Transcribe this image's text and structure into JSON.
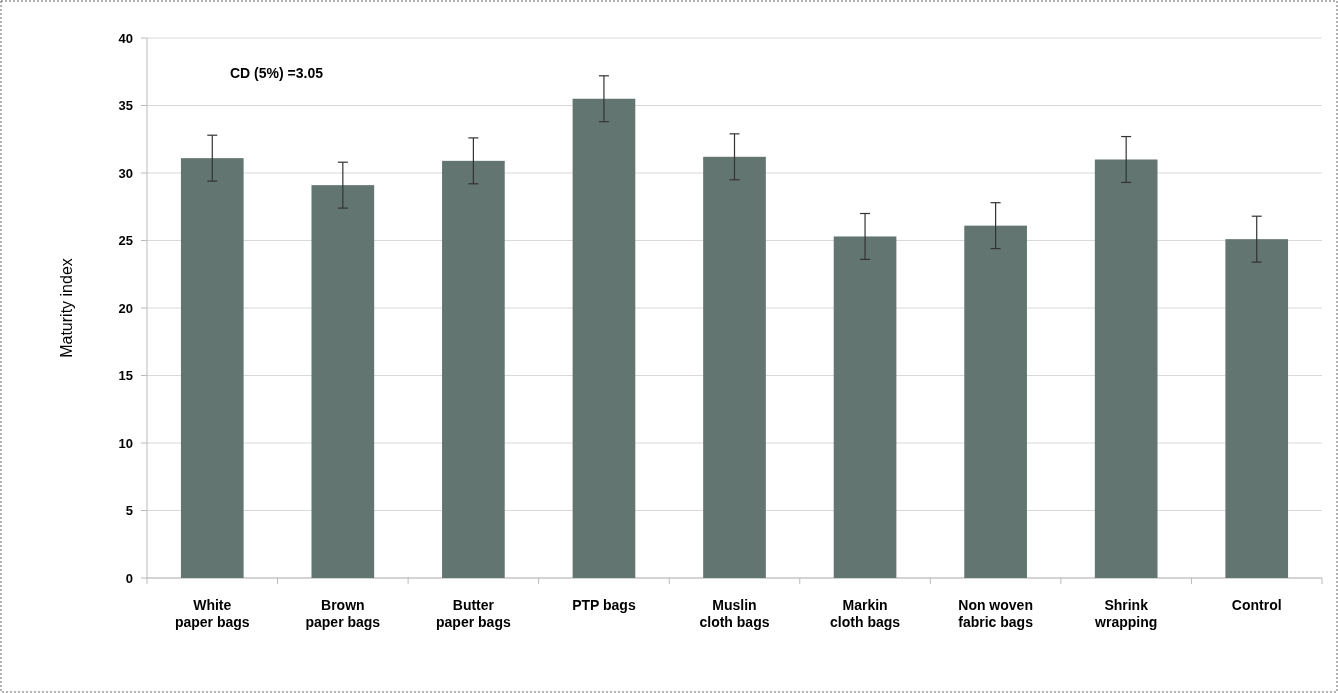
{
  "chart_data": {
    "type": "bar",
    "ylabel": "Maturity index",
    "categories": [
      "White paper bags",
      "Brown paper bags",
      "Butter paper bags",
      "PTP bags",
      "Muslin cloth bags",
      "Markin cloth bags",
      "Non woven fabric bags",
      "Shrink wrapping",
      "Control"
    ],
    "values": [
      31.1,
      29.1,
      30.9,
      35.5,
      31.2,
      25.3,
      26.1,
      31.0,
      25.1
    ],
    "errors": [
      1.7,
      1.7,
      1.7,
      1.7,
      1.7,
      1.7,
      1.7,
      1.7,
      1.7
    ],
    "color": "#637571",
    "ylim": [
      0,
      40
    ],
    "yticks": [
      0,
      5,
      10,
      15,
      20,
      25,
      30,
      35,
      40
    ],
    "grid": "y",
    "annotations": [
      "CD (5%) =3.05"
    ]
  }
}
